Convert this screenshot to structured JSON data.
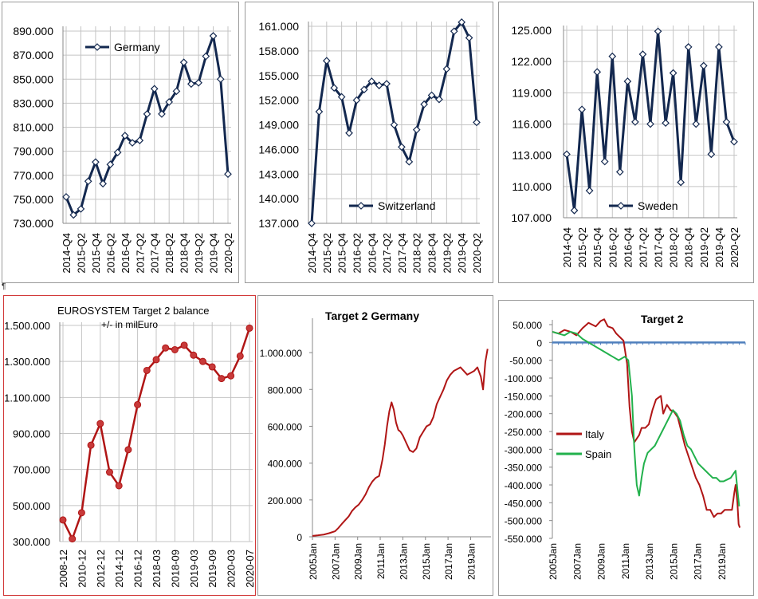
{
  "colors": {
    "navy": "#13284f",
    "red": "#b01515",
    "green": "#22b14c",
    "blue": "#4f7fbd",
    "grid": "#c4c4c4"
  },
  "pilcrow": "¶",
  "chart_data": [
    {
      "id": "germany",
      "type": "line",
      "legend": "Germany",
      "legend_position": "top-left",
      "grid": true,
      "categories": [
        "2014-Q4",
        "2015-Q1",
        "2015-Q2",
        "2015-Q3",
        "2015-Q4",
        "2016-Q1",
        "2016-Q2",
        "2016-Q3",
        "2016-Q4",
        "2017-Q1",
        "2017-Q2",
        "2017-Q3",
        "2017-Q4",
        "2018-Q1",
        "2018-Q2",
        "2018-Q3",
        "2018-Q4",
        "2019-Q1",
        "2019-Q2",
        "2019-Q3",
        "2019-Q4",
        "2020-Q1",
        "2020-Q2"
      ],
      "category_labels": [
        "2014-Q4",
        "2015-Q2",
        "2015-Q4",
        "2016-Q2",
        "2016-Q4",
        "2017-Q2",
        "2017-Q4",
        "2018-Q2",
        "2018-Q4",
        "2019-Q2",
        "2019-Q4",
        "2020-Q2"
      ],
      "values": [
        752,
        737,
        742,
        765,
        781,
        763,
        779,
        789,
        803,
        797,
        799,
        821,
        842,
        821,
        831,
        840,
        864,
        846,
        847,
        869,
        886,
        850,
        771
      ],
      "ylim": [
        730,
        890
      ],
      "yticks": [
        "730.000",
        "750.000",
        "770.000",
        "790.000",
        "810.000",
        "830.000",
        "850.000",
        "870.000",
        "890.000"
      ]
    },
    {
      "id": "switzerland",
      "type": "line",
      "legend": "Switzerland",
      "legend_position": "bottom-center",
      "grid": true,
      "categories": [
        "2014-Q4",
        "2015-Q1",
        "2015-Q2",
        "2015-Q3",
        "2015-Q4",
        "2016-Q1",
        "2016-Q2",
        "2016-Q3",
        "2016-Q4",
        "2017-Q1",
        "2017-Q2",
        "2017-Q3",
        "2017-Q4",
        "2018-Q1",
        "2018-Q2",
        "2018-Q3",
        "2018-Q4",
        "2019-Q1",
        "2019-Q2",
        "2019-Q3",
        "2019-Q4",
        "2020-Q1",
        "2020-Q2"
      ],
      "category_labels": [
        "2014-Q4",
        "2015-Q2",
        "2015-Q4",
        "2016-Q2",
        "2016-Q4",
        "2017-Q2",
        "2017-Q4",
        "2018-Q2",
        "2018-Q4",
        "2019-Q2",
        "2019-Q4",
        "2020-Q2"
      ],
      "values": [
        137.0,
        150.6,
        156.8,
        153.5,
        152.4,
        148.0,
        152.0,
        153.3,
        154.3,
        153.8,
        154.0,
        149.0,
        146.3,
        144.5,
        148.4,
        151.5,
        152.6,
        152.1,
        155.8,
        160.4,
        161.5,
        159.6,
        149.3
      ],
      "ylim": [
        137,
        161
      ],
      "yticks": [
        "137.000",
        "140.000",
        "143.000",
        "146.000",
        "149.000",
        "152.000",
        "155.000",
        "158.000",
        "161.000"
      ]
    },
    {
      "id": "sweden",
      "type": "line",
      "legend": "Sweden",
      "legend_position": "bottom-right",
      "grid": true,
      "categories": [
        "2014-Q4",
        "2015-Q1",
        "2015-Q2",
        "2015-Q3",
        "2015-Q4",
        "2016-Q1",
        "2016-Q2",
        "2016-Q3",
        "2016-Q4",
        "2017-Q1",
        "2017-Q2",
        "2017-Q3",
        "2017-Q4",
        "2018-Q1",
        "2018-Q2",
        "2018-Q3",
        "2018-Q4",
        "2019-Q1",
        "2019-Q2",
        "2019-Q3",
        "2019-Q4",
        "2020-Q1",
        "2020-Q2"
      ],
      "category_labels": [
        "2014-Q4",
        "2015-Q2",
        "2015-Q4",
        "2016-Q2",
        "2016-Q4",
        "2017-Q2",
        "2017-Q4",
        "2018-Q2",
        "2018-Q4",
        "2019-Q2",
        "2019-Q4",
        "2020-Q2"
      ],
      "values": [
        113.1,
        107.7,
        117.4,
        109.6,
        121.0,
        112.4,
        122.5,
        111.4,
        120.1,
        116.2,
        122.7,
        116.0,
        124.9,
        116.1,
        120.9,
        110.4,
        123.4,
        116.0,
        121.6,
        113.1,
        123.4,
        116.2,
        114.3
      ],
      "ylim": [
        107,
        125
      ],
      "yticks": [
        "107.000",
        "110.000",
        "113.000",
        "116.000",
        "119.000",
        "122.000",
        "125.000"
      ]
    },
    {
      "id": "eurosystem",
      "type": "line",
      "title": "EUROSYSTEM  Target 2  balance",
      "subtitle": "+/-   in milEuro",
      "grid": true,
      "categories": [
        "2008-12",
        "2009-12",
        "2010-12",
        "2011-12",
        "2012-12",
        "2013-12",
        "2014-12",
        "2015-12",
        "2016-12",
        "2017-12",
        "2018-03",
        "2018-06",
        "2018-09",
        "2018-12",
        "2019-03",
        "2019-06",
        "2019-09",
        "2019-12",
        "2020-03",
        "2020-06",
        "2020-07"
      ],
      "category_labels": [
        "2008-12",
        "2010-12",
        "2012-12",
        "2014-12",
        "2016-12",
        "2018-03",
        "2018-09",
        "2019-03",
        "2019-09",
        "2020-03",
        "2020-07"
      ],
      "values": [
        420,
        315,
        460,
        835,
        955,
        685,
        610,
        810,
        1060,
        1250,
        1310,
        1375,
        1365,
        1390,
        1335,
        1300,
        1270,
        1205,
        1220,
        1330,
        1485
      ],
      "ylim": [
        300,
        1500
      ],
      "yticks": [
        "300.000",
        "500.000",
        "700.000",
        "900.000",
        "1.100.000",
        "1.300.000",
        "1.500.000"
      ]
    },
    {
      "id": "target2-germany",
      "type": "line",
      "title": "Target 2  Germany",
      "grid": false,
      "xlim": [
        2005,
        2020.8
      ],
      "x_labels": [
        "2005Jan",
        "2007Jan",
        "2009Jan",
        "2011Jan",
        "2013Jan",
        "2015Jan",
        "2017Jan",
        "2019Jan"
      ],
      "ylim": [
        0,
        1100
      ],
      "yticks": [
        "0",
        "200.000",
        "400.000",
        "600.000",
        "800.000",
        "1.000.000"
      ],
      "x": [
        2005.0,
        2005.5,
        2006.0,
        2006.5,
        2007.0,
        2007.3,
        2007.6,
        2007.9,
        2008.2,
        2008.5,
        2008.8,
        2009.1,
        2009.4,
        2009.7,
        2010.0,
        2010.3,
        2010.6,
        2010.9,
        2011.2,
        2011.4,
        2011.6,
        2011.8,
        2012.0,
        2012.2,
        2012.4,
        2012.6,
        2012.8,
        2013.0,
        2013.3,
        2013.6,
        2013.9,
        2014.2,
        2014.5,
        2014.8,
        2015.1,
        2015.4,
        2015.7,
        2016.0,
        2016.3,
        2016.6,
        2016.9,
        2017.2,
        2017.5,
        2017.8,
        2018.1,
        2018.4,
        2018.7,
        2019.0,
        2019.3,
        2019.6,
        2019.9,
        2020.1,
        2020.3,
        2020.5
      ],
      "values": [
        5,
        8,
        12,
        20,
        30,
        48,
        70,
        90,
        110,
        140,
        160,
        175,
        200,
        230,
        270,
        300,
        320,
        330,
        420,
        500,
        600,
        680,
        730,
        690,
        620,
        580,
        570,
        550,
        510,
        470,
        460,
        480,
        540,
        570,
        600,
        610,
        650,
        720,
        760,
        800,
        850,
        880,
        900,
        910,
        920,
        900,
        880,
        890,
        900,
        920,
        870,
        800,
        950,
        1020
      ]
    },
    {
      "id": "target2",
      "type": "line",
      "title": "Target  2",
      "legend_position": "middle-left",
      "grid": false,
      "xlim": [
        2005,
        2021
      ],
      "x_labels": [
        "2005Jan",
        "2007Jan",
        "2009Jan",
        "2011Jan",
        "2013Jan",
        "2015Jan",
        "2017Jan",
        "2019Jan"
      ],
      "ylim": [
        -550,
        50
      ],
      "yticks": [
        "50.000",
        "0",
        "-50.000",
        "-100.000",
        "-150.000",
        "-200.000",
        "-250.000",
        "-300.000",
        "-350.000",
        "-400.000",
        "-450.000",
        "-500.000",
        "-550.000"
      ],
      "series": [
        {
          "name": "Italy",
          "color": "#b01515",
          "x": [
            2005.0,
            2005.5,
            2006.0,
            2006.5,
            2007.0,
            2007.5,
            2008.0,
            2008.3,
            2008.6,
            2009.0,
            2009.3,
            2009.6,
            2010.0,
            2010.3,
            2010.6,
            2010.9,
            2011.2,
            2011.4,
            2011.6,
            2011.8,
            2012.0,
            2012.2,
            2012.4,
            2012.7,
            2013.0,
            2013.3,
            2013.6,
            2014.0,
            2014.2,
            2014.5,
            2014.8,
            2015.1,
            2015.4,
            2015.7,
            2016.0,
            2016.3,
            2016.6,
            2016.9,
            2017.2,
            2017.5,
            2017.8,
            2018.1,
            2018.4,
            2018.7,
            2019.0,
            2019.3,
            2019.6,
            2019.9,
            2020.1,
            2020.2,
            2020.35,
            2020.45,
            2020.55
          ],
          "values": [
            30,
            25,
            35,
            30,
            20,
            40,
            55,
            50,
            45,
            60,
            65,
            45,
            40,
            25,
            15,
            5,
            -60,
            -180,
            -250,
            -280,
            -270,
            -260,
            -240,
            -240,
            -230,
            -190,
            -160,
            -150,
            -200,
            -175,
            -190,
            -195,
            -210,
            -250,
            -290,
            -320,
            -350,
            -380,
            -400,
            -430,
            -470,
            -470,
            -490,
            -480,
            -480,
            -470,
            -470,
            -470,
            -420,
            -400,
            -450,
            -510,
            -520
          ]
        },
        {
          "name": "Spain",
          "color": "#22b14c",
          "x": [
            2005.0,
            2005.5,
            2006.0,
            2006.5,
            2007.0,
            2007.5,
            2008.0,
            2008.5,
            2009.0,
            2009.5,
            2010.0,
            2010.5,
            2011.0,
            2011.3,
            2011.6,
            2011.8,
            2012.0,
            2012.2,
            2012.4,
            2012.6,
            2012.9,
            2013.2,
            2013.5,
            2013.8,
            2014.1,
            2014.4,
            2014.7,
            2015.0,
            2015.3,
            2015.6,
            2015.9,
            2016.2,
            2016.5,
            2016.8,
            2017.1,
            2017.4,
            2017.7,
            2018.0,
            2018.3,
            2018.6,
            2018.9,
            2019.2,
            2019.5,
            2019.8,
            2020.0,
            2020.2,
            2020.4,
            2020.5
          ],
          "values": [
            30,
            25,
            20,
            30,
            25,
            10,
            0,
            -10,
            -20,
            -30,
            -40,
            -50,
            -40,
            -50,
            -150,
            -300,
            -400,
            -430,
            -380,
            -340,
            -310,
            -300,
            -290,
            -270,
            -250,
            -230,
            -210,
            -190,
            -200,
            -220,
            -260,
            -290,
            -300,
            -320,
            -340,
            -350,
            -360,
            -370,
            -380,
            -380,
            -390,
            -390,
            -385,
            -380,
            -370,
            -360,
            -430,
            -460
          ]
        }
      ]
    }
  ]
}
